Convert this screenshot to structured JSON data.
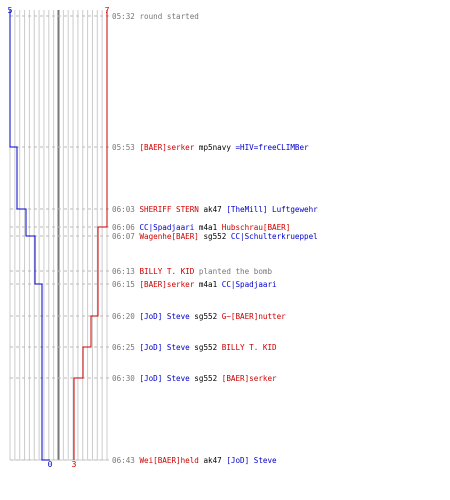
{
  "colors": {
    "team_a": "#0000cc",
    "team_b": "#cc0000",
    "grid": "#cccccc",
    "center": "#777777",
    "dash": "#bbbbbb",
    "time": "#777777",
    "text": "#000000"
  },
  "graph": {
    "rounds": 20,
    "top_labels": {
      "left": "5",
      "right": "7"
    },
    "bottom_labels": {
      "left": "0",
      "right": "3"
    }
  },
  "events": [
    {
      "time": "05:32",
      "parts": [
        {
          "text": "round started",
          "color": "#777777"
        }
      ],
      "a": 5,
      "b": 7
    },
    {
      "time": "05:53",
      "parts": [
        {
          "text": "[BAER]serker",
          "color": "#cc0000"
        },
        {
          "text": " mp5navy ",
          "color": "#000000"
        },
        {
          "text": "=HIV=freeCLIMBer",
          "color": "#0000cc"
        }
      ],
      "a": 4,
      "b": 7
    },
    {
      "time": "06:03",
      "parts": [
        {
          "text": "SHERIFF STERN",
          "color": "#cc0000"
        },
        {
          "text": " ak47 ",
          "color": "#000000"
        },
        {
          "text": "[TheMill] Luftgewehr",
          "color": "#0000cc"
        }
      ],
      "a": 3,
      "b": 7
    },
    {
      "time": "06:06",
      "parts": [
        {
          "text": "CC|Spadjaari",
          "color": "#0000cc"
        },
        {
          "text": " m4a1 ",
          "color": "#000000"
        },
        {
          "text": "Hubschrau[BAER]",
          "color": "#cc0000"
        }
      ],
      "a": 3,
      "b": 6
    },
    {
      "time": "06:07",
      "parts": [
        {
          "text": "Wagenhe[BAER]",
          "color": "#cc0000"
        },
        {
          "text": " sg552 ",
          "color": "#000000"
        },
        {
          "text": "CC|Schulterkrueppel",
          "color": "#0000cc"
        }
      ],
      "a": 2,
      "b": 6
    },
    {
      "time": "06:13",
      "parts": [
        {
          "text": "BILLY T. KID",
          "color": "#cc0000"
        },
        {
          "text": " planted the bomb",
          "color": "#777777"
        }
      ],
      "a": 2,
      "b": 6
    },
    {
      "time": "06:15",
      "parts": [
        {
          "text": "[BAER]serker",
          "color": "#cc0000"
        },
        {
          "text": " m4a1 ",
          "color": "#000000"
        },
        {
          "text": "CC|Spadjaari",
          "color": "#0000cc"
        }
      ],
      "a": 1,
      "b": 6
    },
    {
      "time": "06:20",
      "parts": [
        {
          "text": "[JoD] Steve",
          "color": "#0000cc"
        },
        {
          "text": " sg552 ",
          "color": "#000000"
        },
        {
          "text": "G~[BAER]nutter",
          "color": "#cc0000"
        }
      ],
      "a": 1,
      "b": 5
    },
    {
      "time": "06:25",
      "parts": [
        {
          "text": "[JoD] Steve",
          "color": "#0000cc"
        },
        {
          "text": " sg552 ",
          "color": "#000000"
        },
        {
          "text": "BILLY T. KID",
          "color": "#cc0000"
        }
      ],
      "a": 1,
      "b": 4
    },
    {
      "time": "06:30",
      "parts": [
        {
          "text": "[JoD] Steve",
          "color": "#0000cc"
        },
        {
          "text": " sg552 ",
          "color": "#000000"
        },
        {
          "text": "[BAER]serker",
          "color": "#cc0000"
        }
      ],
      "a": 1,
      "b": 3
    },
    {
      "time": "06:43",
      "parts": [
        {
          "text": "Wei[BAER]held",
          "color": "#cc0000"
        },
        {
          "text": " ak47 ",
          "color": "#000000"
        },
        {
          "text": "[JoD] Steve",
          "color": "#0000cc"
        }
      ],
      "a": 0,
      "b": 3
    }
  ]
}
